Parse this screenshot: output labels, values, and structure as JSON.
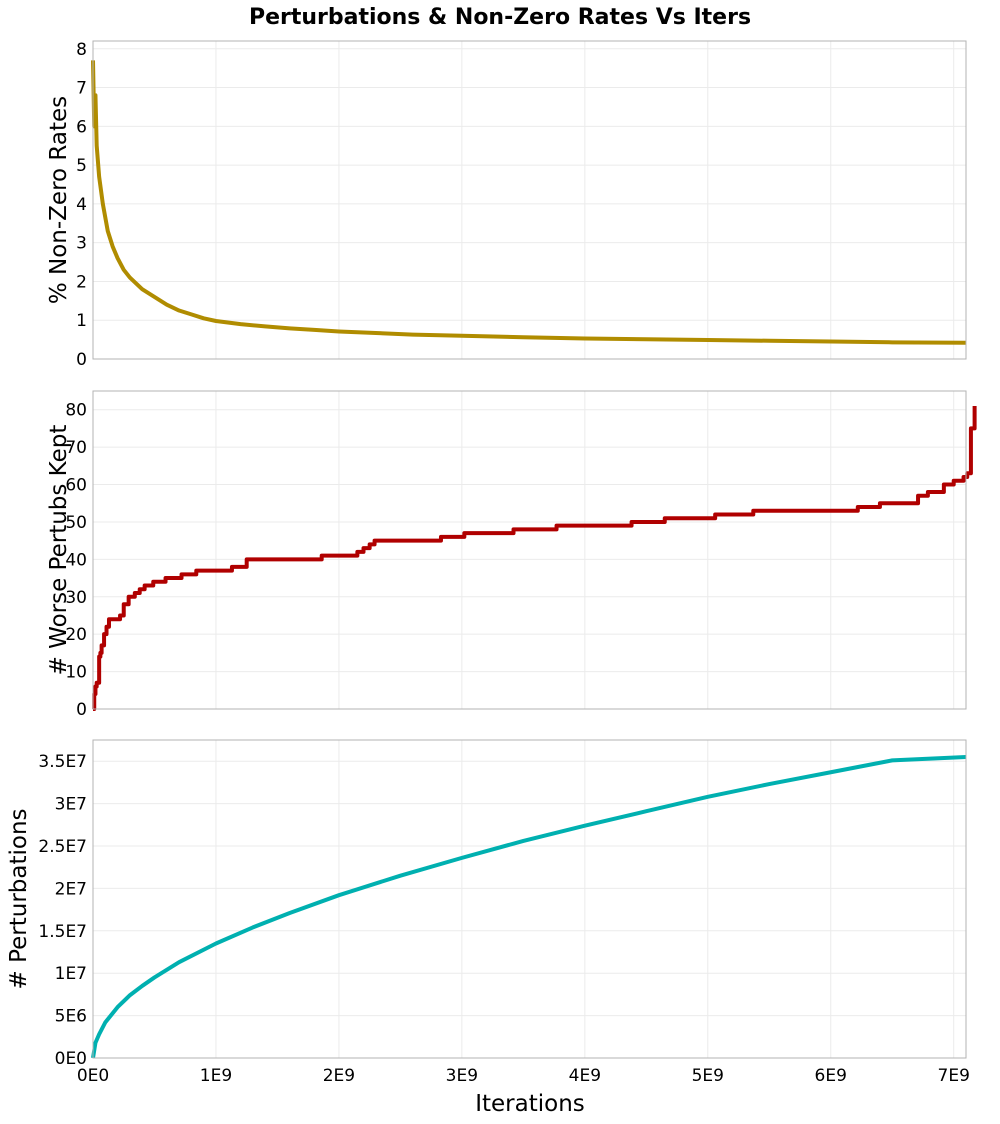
{
  "chart_data": {
    "type": "line",
    "title": "Perturbations & Non-Zero Rates Vs Iters",
    "xlabel": "Iterations",
    "xlim": [
      0,
      7100000000
    ],
    "x_ticks": [
      0,
      1000000000,
      2000000000,
      3000000000,
      4000000000,
      5000000000,
      6000000000,
      7000000000
    ],
    "x_tick_labels": [
      "0E0",
      "1E9",
      "2E9",
      "3E9",
      "4E9",
      "5E9",
      "6E9",
      "7E9"
    ],
    "grid": true,
    "panels": [
      {
        "id": "nonzero",
        "ylabel": "% Non-Zero Rates",
        "ylim": [
          0,
          8.2
        ],
        "y_ticks": [
          0,
          1,
          2,
          3,
          4,
          5,
          6,
          7,
          8
        ],
        "y_tick_labels": [
          "0",
          "1",
          "2",
          "3",
          "4",
          "5",
          "6",
          "7",
          "8"
        ],
        "series": [
          {
            "color": "#b08c00",
            "style": "line",
            "x": [
              0,
              10000000,
              20000000,
              30000000,
              50000000,
              80000000,
              120000000,
              160000000,
              200000000,
              250000000,
              300000000,
              400000000,
              500000000,
              600000000,
              700000000,
              800000000,
              900000000,
              1000000000,
              1200000000,
              1400000000,
              1600000000,
              1800000000,
              2000000000,
              2300000000,
              2600000000,
              3000000000,
              3500000000,
              4000000000,
              4500000000,
              5000000000,
              5500000000,
              6000000000,
              6500000000,
              7100000000
            ],
            "y": [
              7.7,
              6.0,
              6.8,
              5.5,
              4.7,
              4.0,
              3.3,
              2.9,
              2.6,
              2.3,
              2.1,
              1.8,
              1.6,
              1.4,
              1.25,
              1.15,
              1.05,
              0.98,
              0.9,
              0.84,
              0.79,
              0.75,
              0.71,
              0.67,
              0.63,
              0.6,
              0.56,
              0.53,
              0.51,
              0.49,
              0.47,
              0.45,
              0.43,
              0.42
            ]
          }
        ]
      },
      {
        "id": "worse",
        "ylabel": "# Worse Pertubs Kept",
        "ylim": [
          0,
          85
        ],
        "y_ticks": [
          0,
          10,
          20,
          30,
          40,
          50,
          60,
          70,
          80
        ],
        "y_tick_labels": [
          "0",
          "10",
          "20",
          "30",
          "40",
          "50",
          "60",
          "70",
          "80"
        ],
        "series": [
          {
            "color": "#b00000",
            "style": "step",
            "x": [
              0,
              10000000,
              20000000,
              30000000,
              50000000,
              60000000,
              70000000,
              90000000,
              110000000,
              130000000,
              150000000,
              220000000,
              250000000,
              290000000,
              340000000,
              380000000,
              420000000,
              490000000,
              530000000,
              590000000,
              660000000,
              720000000,
              840000000,
              1130000000,
              1250000000,
              1860000000,
              2150000000,
              2200000000,
              2250000000,
              2290000000,
              2830000000,
              3020000000,
              3420000000,
              3770000000,
              4380000000,
              4500000000,
              4650000000,
              5060000000,
              5370000000,
              6220000000,
              6300000000,
              6400000000,
              6710000000,
              6790000000,
              6920000000,
              7000000000,
              7080000000,
              7110000000,
              7140000000,
              7170000000
            ],
            "y": [
              0,
              4,
              6,
              7,
              14,
              15,
              17,
              20,
              22,
              24,
              24,
              25,
              28,
              30,
              31,
              32,
              33,
              34,
              34,
              35,
              35,
              36,
              37,
              38,
              40,
              41,
              42,
              43,
              44,
              45,
              46,
              47,
              48,
              49,
              50,
              50,
              51,
              52,
              53,
              54,
              54,
              55,
              57,
              58,
              60,
              61,
              62,
              63,
              75,
              81
            ]
          }
        ]
      },
      {
        "id": "perturb",
        "ylabel": "# Perturbations",
        "ylim": [
          0,
          37500000
        ],
        "y_ticks": [
          0,
          5000000,
          10000000,
          15000000,
          20000000,
          25000000,
          30000000,
          35000000
        ],
        "y_tick_labels": [
          "0E0",
          "5E6",
          "1E7",
          "1.5E7",
          "2E7",
          "2.5E7",
          "3E7",
          "3.5E7"
        ],
        "series": [
          {
            "color": "#00b0b0",
            "style": "line",
            "x": [
              0,
              20000000,
              50000000,
              100000000,
              200000000,
              300000000,
              400000000,
              500000000,
              700000000,
              1000000000,
              1300000000,
              1600000000,
              2000000000,
              2500000000,
              3000000000,
              3500000000,
              4000000000,
              4500000000,
              5000000000,
              5500000000,
              6000000000,
              6500000000,
              7100000000
            ],
            "y": [
              0,
              1800000,
              2800000,
              4200000,
              6000000,
              7400000,
              8500000,
              9500000,
              11300000,
              13500000,
              15400000,
              17100000,
              19200000,
              21500000,
              23600000,
              25600000,
              27400000,
              29100000,
              30800000,
              32300000,
              33700000,
              35100000,
              35500000
            ]
          }
        ]
      }
    ]
  }
}
